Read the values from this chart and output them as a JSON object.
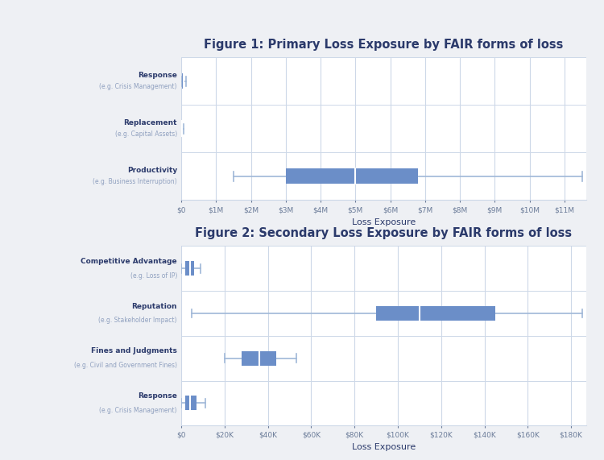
{
  "fig1_title": "Figure 1: Primary Loss Exposure by FAIR forms of loss",
  "fig2_title": "Figure 2: Secondary Loss Exposure by FAIR forms of loss",
  "xlabel": "Loss Exposure",
  "bg_color": "#eef0f4",
  "plot_bg_color": "#ffffff",
  "title_color": "#2b3a6b",
  "label_color": "#2b3a6b",
  "sublabel_color": "#8fa0bf",
  "box_color": "#6b8ec8",
  "whisker_color": "#a0b8d8",
  "median_color": "#ffffff",
  "grid_color": "#cdd8e8",
  "fig1_categories_main": [
    "Response",
    "Replacement",
    "Productivity"
  ],
  "fig1_categories_sub": [
    "(e.g. Crisis Management)",
    "(e.g. Capital Assets)",
    "(e.g. Business Interruption)"
  ],
  "fig1_whislo": [
    0,
    0,
    1500000
  ],
  "fig1_q1": [
    30000,
    10000,
    3000000
  ],
  "fig1_med": [
    60000,
    20000,
    5000000
  ],
  "fig1_q3": [
    100000,
    40000,
    6800000
  ],
  "fig1_whishi": [
    150000,
    80000,
    11500000
  ],
  "fig1_xlim": [
    0,
    11500000
  ],
  "fig1_xticks": [
    0,
    1000000,
    2000000,
    3000000,
    4000000,
    5000000,
    6000000,
    7000000,
    8000000,
    9000000,
    10000000,
    11000000
  ],
  "fig1_xticklabels": [
    "$0",
    "$1M",
    "$2M",
    "$3M",
    "$4M",
    "$5M",
    "$6M",
    "$7M",
    "$8M",
    "$9M",
    "$10M",
    "$11M"
  ],
  "fig2_categories_main": [
    "Competitive Advantage",
    "Reputation",
    "Fines and Judgments",
    "Response"
  ],
  "fig2_categories_sub": [
    "(e.g. Loss of IP)",
    "(e.g. Stakeholder Impact)",
    "(e.g. Civil and Government Fines)",
    "(e.g. Crisis Management)"
  ],
  "fig2_whislo": [
    0,
    5000,
    20000,
    0
  ],
  "fig2_q1": [
    2000,
    90000,
    28000,
    2000
  ],
  "fig2_med": [
    4000,
    110000,
    36000,
    4000
  ],
  "fig2_q3": [
    6000,
    145000,
    44000,
    7000
  ],
  "fig2_whishi": [
    9000,
    185000,
    53000,
    11000
  ],
  "fig2_xlim": [
    0,
    185000
  ],
  "fig2_xticks": [
    0,
    20000,
    40000,
    60000,
    80000,
    100000,
    120000,
    140000,
    160000,
    180000
  ],
  "fig2_xticklabels": [
    "$0",
    "$20K",
    "$40K",
    "$60K",
    "$80K",
    "$100K",
    "$120K",
    "$140K",
    "$160K",
    "$180K"
  ]
}
